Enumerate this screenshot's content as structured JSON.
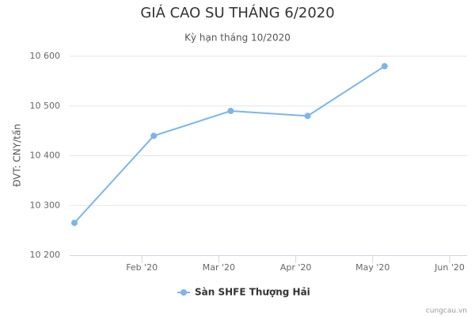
{
  "chart_data": {
    "type": "line",
    "title": "GIÁ CAO SU THÁNG 6/2020",
    "subtitle": "Kỳ hạn tháng 10/2020",
    "y_label": "ĐVT: CNY/tấn",
    "categories": [
      null,
      "Feb '20",
      "Mar '20",
      "Apr '20",
      "May '20",
      "Jun '20"
    ],
    "series": [
      {
        "name": "Sàn SHFE Thượng Hải",
        "color": "#7cb5ec",
        "values": [
          10265,
          10440,
          10490,
          10480,
          10580,
          null
        ]
      }
    ],
    "ylim": [
      10200,
      10600
    ],
    "yticks": [
      {
        "value": 10200,
        "label": "10 200"
      },
      {
        "value": 10300,
        "label": "10 300"
      },
      {
        "value": 10400,
        "label": "10 400"
      },
      {
        "value": 10500,
        "label": "10 500"
      },
      {
        "value": 10600,
        "label": "10 600"
      }
    ],
    "grid": true,
    "legend": "bottom",
    "credit": "cungcau.vn"
  }
}
